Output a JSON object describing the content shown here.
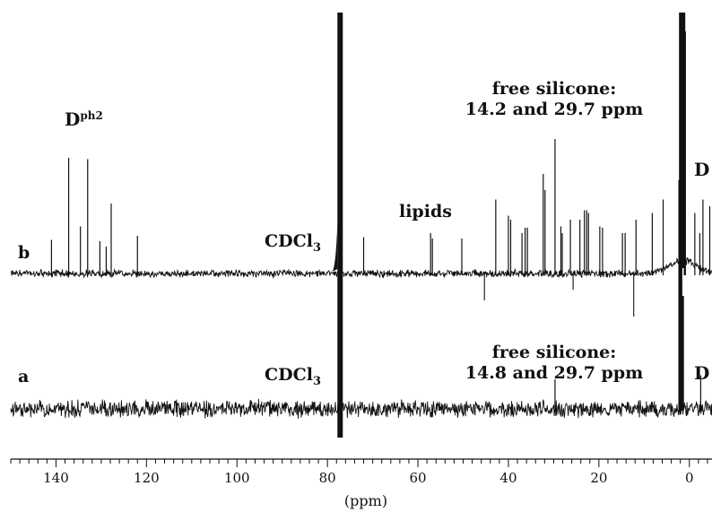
{
  "chart_data": {
    "type": "line",
    "title": "",
    "xlabel": "(ppm)",
    "ylabel": "",
    "xlim": [
      150,
      -5
    ],
    "x_reversed": true,
    "ticks": [
      "140",
      "120",
      "100",
      "80",
      "60",
      "40",
      "20",
      "0"
    ],
    "tick_values": [
      140,
      120,
      100,
      80,
      60,
      40,
      20,
      0
    ],
    "minor_tick_step": 2,
    "grid": false,
    "legend": "none",
    "color": "#111111",
    "series": [
      {
        "name": "b",
        "peaks": [
          {
            "ppm": 141.0,
            "h": 0.25
          },
          {
            "ppm": 137.2,
            "h": 0.86
          },
          {
            "ppm": 134.6,
            "h": 0.35
          },
          {
            "ppm": 133.0,
            "h": 0.85
          },
          {
            "ppm": 130.3,
            "h": 0.24
          },
          {
            "ppm": 128.9,
            "h": 0.2
          },
          {
            "ppm": 127.8,
            "h": 0.52
          },
          {
            "ppm": 122.0,
            "h": 0.28
          },
          {
            "ppm": 72.0,
            "h": 0.27
          },
          {
            "ppm": 57.2,
            "h": 0.3
          },
          {
            "ppm": 56.8,
            "h": 0.26
          },
          {
            "ppm": 50.3,
            "h": 0.26
          },
          {
            "ppm": 42.8,
            "h": 0.55
          },
          {
            "ppm": 40.0,
            "h": 0.43
          },
          {
            "ppm": 39.5,
            "h": 0.4
          },
          {
            "ppm": 37.0,
            "h": 0.3
          },
          {
            "ppm": 36.3,
            "h": 0.34
          },
          {
            "ppm": 35.8,
            "h": 0.34
          },
          {
            "ppm": 32.3,
            "h": 0.74
          },
          {
            "ppm": 31.9,
            "h": 0.62
          },
          {
            "ppm": 29.7,
            "h": 1.0
          },
          {
            "ppm": 28.4,
            "h": 0.35
          },
          {
            "ppm": 28.1,
            "h": 0.3
          },
          {
            "ppm": 26.3,
            "h": 0.4
          },
          {
            "ppm": 24.2,
            "h": 0.4
          },
          {
            "ppm": 23.2,
            "h": 0.47
          },
          {
            "ppm": 22.7,
            "h": 0.47
          },
          {
            "ppm": 22.3,
            "h": 0.45
          },
          {
            "ppm": 19.8,
            "h": 0.35
          },
          {
            "ppm": 19.2,
            "h": 0.34
          },
          {
            "ppm": 14.8,
            "h": 0.3
          },
          {
            "ppm": 14.2,
            "h": 0.3
          },
          {
            "ppm": 11.8,
            "h": 0.4
          },
          {
            "ppm": 8.2,
            "h": 0.45
          },
          {
            "ppm": 5.8,
            "h": 0.55
          },
          {
            "ppm": 2.0,
            "h": 1.8
          },
          {
            "ppm": 1.0,
            "h": 1.8
          },
          {
            "ppm": -1.2,
            "h": 0.45
          },
          {
            "ppm": -2.3,
            "h": 0.3
          },
          {
            "ppm": -3.0,
            "h": 0.55
          },
          {
            "ppm": -4.5,
            "h": 0.5
          }
        ],
        "negative_peaks": [
          {
            "ppm": 45.3,
            "h": 0.2
          },
          {
            "ppm": 25.7,
            "h": 0.12
          },
          {
            "ppm": 12.3,
            "h": 0.32
          }
        ]
      },
      {
        "name": "a",
        "peaks": [
          {
            "ppm": 29.7,
            "h": 0.22
          },
          {
            "ppm": 2.2,
            "h": 1.7
          },
          {
            "ppm": 1.8,
            "h": 1.7
          },
          {
            "ppm": -2.5,
            "h": 0.25
          }
        ],
        "negative_peaks": []
      }
    ],
    "solvent_peak": {
      "ppm": 77.2,
      "label": "CDCl"
    }
  },
  "labels": {
    "trace_b": "b",
    "trace_a": "a",
    "dph2_main": "D",
    "dph2_sup": "ph2",
    "lipids": "lipids",
    "cdcl3_main": "CDCl",
    "cdcl3_sub": "3",
    "free_silicone_b_line1": "free silicone:",
    "free_silicone_b_line2": "14.2 and 29.7 ppm",
    "free_silicone_a_line1": "free silicone:",
    "free_silicone_a_line2": "14.8 and 29.7 ppm",
    "d_b": "D",
    "d_a": "D"
  }
}
